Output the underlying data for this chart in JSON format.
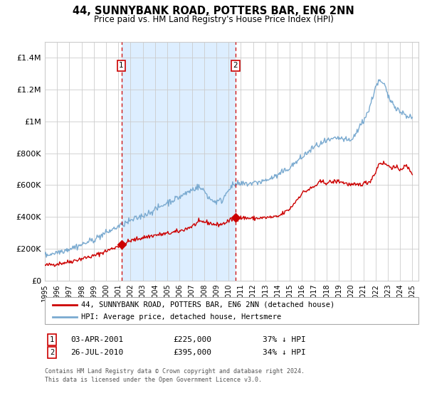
{
  "title": "44, SUNNYBANK ROAD, POTTERS BAR, EN6 2NN",
  "subtitle": "Price paid vs. HM Land Registry's House Price Index (HPI)",
  "red_label": "44, SUNNYBANK ROAD, POTTERS BAR, EN6 2NN (detached house)",
  "blue_label": "HPI: Average price, detached house, Hertsmere",
  "transaction1_date": "03-APR-2001",
  "transaction1_price": "£225,000",
  "transaction1_hpi": "37% ↓ HPI",
  "transaction2_date": "26-JUL-2010",
  "transaction2_price": "£395,000",
  "transaction2_hpi": "34% ↓ HPI",
  "footnote1": "Contains HM Land Registry data © Crown copyright and database right 2024.",
  "footnote2": "This data is licensed under the Open Government Licence v3.0.",
  "red_color": "#cc0000",
  "blue_color": "#7aaad0",
  "highlight_color": "#ddeeff",
  "vline_color": "#cc0000",
  "grid_color": "#cccccc",
  "background_color": "#ffffff",
  "ylim": [
    0,
    1500000
  ],
  "yticks": [
    0,
    200000,
    400000,
    600000,
    800000,
    1000000,
    1200000,
    1400000
  ],
  "ytick_labels": [
    "£0",
    "£200K",
    "£400K",
    "£600K",
    "£800K",
    "£1M",
    "£1.2M",
    "£1.4M"
  ],
  "transaction1_x": 2001.25,
  "transaction2_x": 2010.57,
  "transaction1_y": 225000,
  "transaction2_y": 395000,
  "xmin": 1995,
  "xmax": 2025.5
}
